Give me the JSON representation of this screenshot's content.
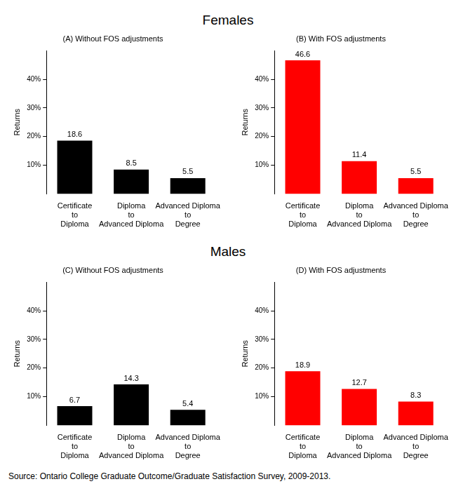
{
  "headings": [
    "Females",
    "Males"
  ],
  "chart_data": [
    {
      "type": "bar",
      "title": "(A) Without FOS adjustments",
      "y_label": "Returns",
      "categories": [
        "Certificate\nto\nDiploma",
        "Diploma\nto\nAdvanced Diploma",
        "Advanced Diploma\nto\nDegree"
      ],
      "values": [
        18.6,
        8.5,
        5.5
      ],
      "color": "#000000",
      "ylim": [
        0,
        50
      ],
      "yticks": [
        {
          "value": 10,
          "label": "10%"
        },
        {
          "value": 20,
          "label": "20%"
        },
        {
          "value": 30,
          "label": "30%"
        },
        {
          "value": 40,
          "label": "40%"
        }
      ],
      "grid": false,
      "data_labels": true
    },
    {
      "type": "bar",
      "title": "(B) With FOS adjustments",
      "y_label": "Returns",
      "categories": [
        "Certificate\nto\nDiploma",
        "Diploma\nto\nAdvanced Diploma",
        "Advanced Diploma\nto\nDegree"
      ],
      "values": [
        46.6,
        11.4,
        5.5
      ],
      "color": "#ff0000",
      "ylim": [
        0,
        50
      ],
      "yticks": [
        {
          "value": 10,
          "label": "10%"
        },
        {
          "value": 20,
          "label": "20%"
        },
        {
          "value": 30,
          "label": "30%"
        },
        {
          "value": 40,
          "label": "40%"
        }
      ],
      "grid": false,
      "data_labels": true
    },
    {
      "type": "bar",
      "title": "(C) Without FOS adjustments",
      "y_label": "Returns",
      "categories": [
        "Certificate\nto\nDiploma",
        "Diploma\nto\nAdvanced Diploma",
        "Advanced Diploma\nto\nDegree"
      ],
      "values": [
        6.7,
        14.3,
        5.4
      ],
      "color": "#000000",
      "ylim": [
        0,
        50
      ],
      "yticks": [
        {
          "value": 10,
          "label": "10%"
        },
        {
          "value": 20,
          "label": "20%"
        },
        {
          "value": 30,
          "label": "30%"
        },
        {
          "value": 40,
          "label": "40%"
        }
      ],
      "grid": false,
      "data_labels": true
    },
    {
      "type": "bar",
      "title": "(D) With FOS adjustments",
      "y_label": "Returns",
      "categories": [
        "Certificate\nto\nDiploma",
        "Diploma\nto\nAdvanced Diploma",
        "Advanced Diploma\nto\nDegree"
      ],
      "values": [
        18.9,
        12.7,
        8.3
      ],
      "color": "#ff0000",
      "ylim": [
        0,
        50
      ],
      "yticks": [
        {
          "value": 10,
          "label": "10%"
        },
        {
          "value": 20,
          "label": "20%"
        },
        {
          "value": 30,
          "label": "30%"
        },
        {
          "value": 40,
          "label": "40%"
        }
      ],
      "grid": false,
      "data_labels": true
    }
  ],
  "source": "Source: Ontario College Graduate Outcome/Graduate Satisfaction Survey, 2009-2013."
}
